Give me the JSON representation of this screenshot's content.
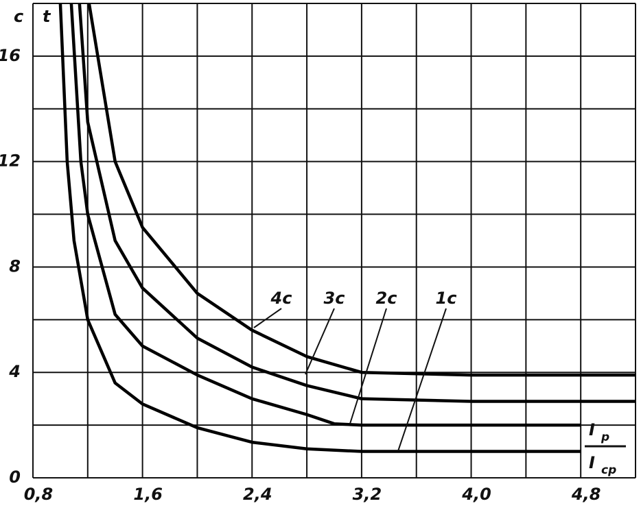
{
  "chart_data": {
    "type": "line",
    "y_unit": "c",
    "y_label": "t",
    "x_label_num": "I",
    "x_label_num_sub": "p",
    "x_label_den": "I",
    "x_label_den_sub": "cp",
    "xlim": [
      0.8,
      5.2
    ],
    "ylim": [
      0,
      18
    ],
    "xticks": [
      {
        "value": 0.8,
        "label": "0,8"
      },
      {
        "value": 1.6,
        "label": "1,6"
      },
      {
        "value": 2.4,
        "label": "2,4"
      },
      {
        "value": 3.2,
        "label": "3,2"
      },
      {
        "value": 4.0,
        "label": "4,0"
      },
      {
        "value": 4.8,
        "label": "4,8"
      }
    ],
    "yticks": [
      0,
      4,
      8,
      12,
      16
    ],
    "xgrid": [
      0.8,
      1.2,
      1.6,
      2.0,
      2.4,
      2.8,
      3.2,
      3.6,
      4.0,
      4.4,
      4.8,
      5.2
    ],
    "ygrid": [
      0,
      2,
      4,
      6,
      8,
      10,
      12,
      14,
      16,
      18
    ],
    "series": [
      {
        "name": "1c",
        "color": "#000000",
        "x": [
          1.0,
          1.05,
          1.1,
          1.2,
          1.4,
          1.6,
          2.0,
          2.4,
          2.8,
          3.2,
          4.0,
          4.8
        ],
        "values": [
          18,
          12,
          9,
          6,
          3.6,
          2.8,
          1.9,
          1.35,
          1.1,
          1.0,
          1.0,
          1.0
        ]
      },
      {
        "name": "2c",
        "color": "#000000",
        "x": [
          1.08,
          1.15,
          1.2,
          1.4,
          1.6,
          2.0,
          2.4,
          2.8,
          3.0,
          3.2,
          4.8
        ],
        "values": [
          18,
          12,
          10,
          6.2,
          5.0,
          3.9,
          3.0,
          2.4,
          2.05,
          2.0,
          2.0
        ]
      },
      {
        "name": "3c",
        "color": "#000000",
        "x": [
          1.14,
          1.2,
          1.4,
          1.6,
          2.0,
          2.4,
          2.8,
          3.2,
          4.0,
          5.2
        ],
        "values": [
          18,
          13.5,
          9,
          7.2,
          5.3,
          4.2,
          3.5,
          3.0,
          2.9,
          2.9
        ]
      },
      {
        "name": "4c",
        "color": "#000000",
        "x": [
          1.21,
          1.4,
          1.6,
          2.0,
          2.4,
          2.8,
          3.2,
          4.0,
          5.2
        ],
        "values": [
          18,
          12,
          9.5,
          7.0,
          5.6,
          4.6,
          4.0,
          3.9,
          3.9
        ]
      }
    ]
  }
}
